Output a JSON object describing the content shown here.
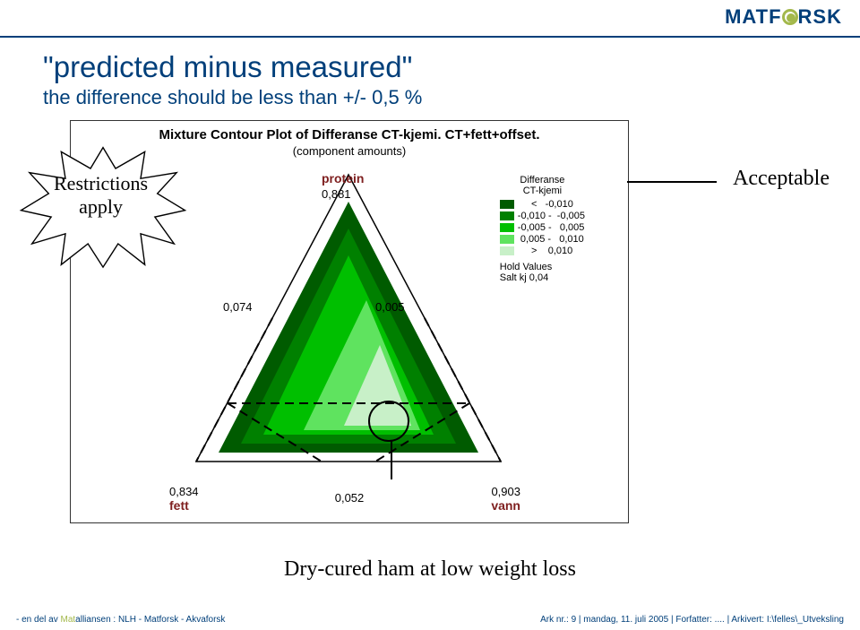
{
  "logo": {
    "text_left": "MATF",
    "text_right": "RSK"
  },
  "title_quote_open": "\"",
  "title_text": "predicted minus measured",
  "title_quote_close": "\"",
  "subtitle": "the difference should be less than +/- 0,5 %",
  "chart": {
    "title_main": "Mixture Contour Plot of Differanse CT-kjemi. CT+fett+offset.",
    "title_sub": "(component amounts)",
    "type": "ternary-contour",
    "vertices": {
      "top": {
        "name": "protein",
        "value": "0,881"
      },
      "left": {
        "name": "fett",
        "value": "0,834"
      },
      "right": {
        "name": "vann",
        "value": "0,903"
      }
    },
    "edge_midpoints": {
      "left_edge": "0,074",
      "right_edge": "0,005",
      "bottom_mid": "0,052"
    },
    "outline_color": "#000000",
    "background_color": "#ffffff",
    "contour_colors": [
      "#005b00",
      "#008000",
      "#00bf00",
      "#5fe35f",
      "#c8f0c8"
    ]
  },
  "legend": {
    "title_l1": "Differanse",
    "title_l2": "CT-kjemi",
    "rows": [
      {
        "color": "#005b00",
        "label": "     <   -0,010"
      },
      {
        "color": "#008000",
        "label": "-0,010 -  -0,005"
      },
      {
        "color": "#00bf00",
        "label": "-0,005 -   0,005"
      },
      {
        "color": "#5fe35f",
        "label": " 0,005 -   0,010"
      },
      {
        "color": "#c8f0c8",
        "label": "     >    0,010"
      }
    ],
    "hold_title": "Hold Values",
    "hold_line": "Salt kj  0,04"
  },
  "starburst": {
    "label_l1": "Restrictions",
    "label_l2": " apply"
  },
  "acceptable_label": "Acceptable",
  "bottom_caption": "Dry-cured ham at low weight loss",
  "footer_left_pre": "- en del av ",
  "footer_left_mat": "Mat",
  "footer_left_rest": "alliansen  :  NLH - Matforsk - Akvaforsk",
  "footer_right": "Ark nr.: 9  |  mandag, 11. juli 2005  |  Forfatter: ....  |  Arkivert: I:\\felles\\_Utveksling"
}
